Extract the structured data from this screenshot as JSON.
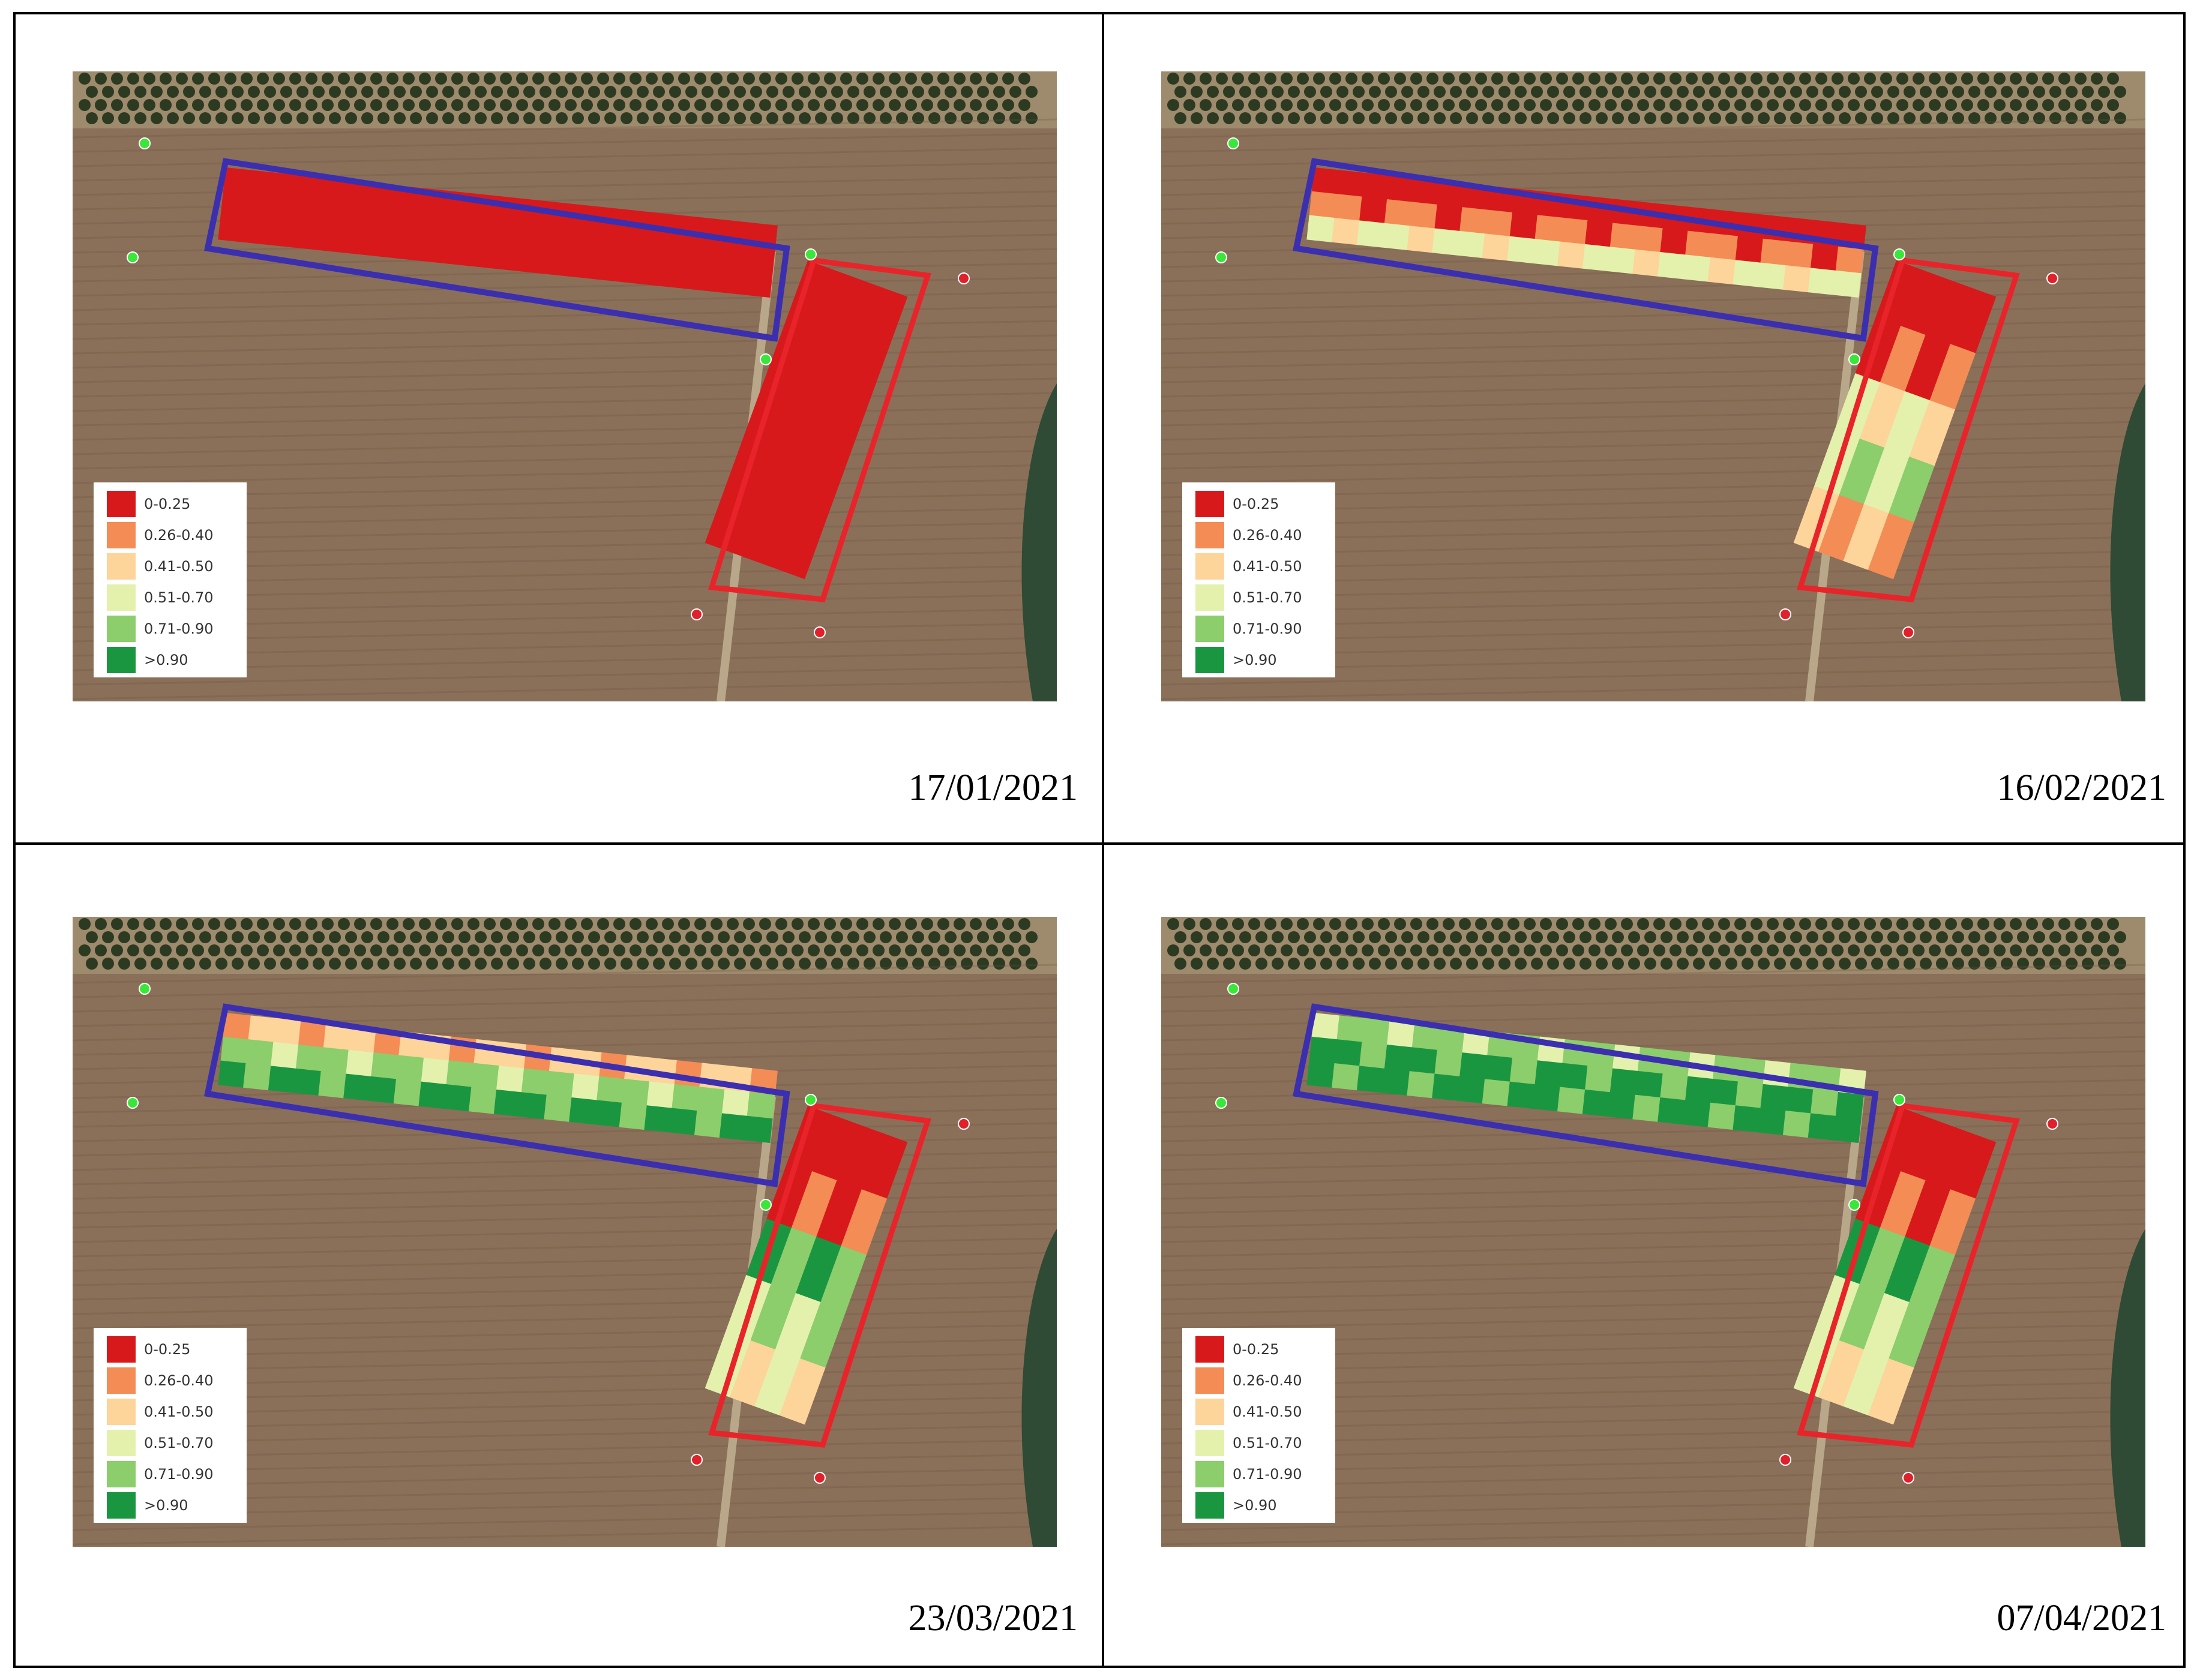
{
  "legend": [
    {
      "label": "0-0.25",
      "color": "#d7191c"
    },
    {
      "label": "0.26-0.40",
      "color": "#f48c55"
    },
    {
      "label": "0.41-0.50",
      "color": "#fdd49a"
    },
    {
      "label": "0.51-0.70",
      "color": "#e3f1ad"
    },
    {
      "label": "0.71-0.90",
      "color": "#8ccd6c"
    },
    {
      "label": ">0.90",
      "color": "#1a9641"
    }
  ],
  "colors": {
    "field_outline_north": "#3b2fb0",
    "field_outline_south": "#e8242a",
    "point_green": "#39e639",
    "point_red": "#e0202a",
    "soil": "#8a7059",
    "trees": "#2d3a22"
  },
  "panels": [
    {
      "date": "17/01/2021",
      "north_levels": [
        0,
        0,
        0
      ],
      "south_levels": [
        0,
        0,
        0,
        0,
        0
      ]
    },
    {
      "date": "16/02/2021",
      "north_levels": [
        0,
        1,
        3
      ],
      "south_levels": [
        0,
        1,
        3,
        4,
        2
      ]
    },
    {
      "date": "23/03/2021",
      "north_levels": [
        2,
        4,
        5
      ],
      "south_levels": [
        0,
        1,
        5,
        4,
        3
      ]
    },
    {
      "date": "07/04/2021",
      "north_levels": [
        4,
        5,
        5
      ],
      "south_levels": [
        0,
        1,
        5,
        4,
        3
      ]
    }
  ]
}
